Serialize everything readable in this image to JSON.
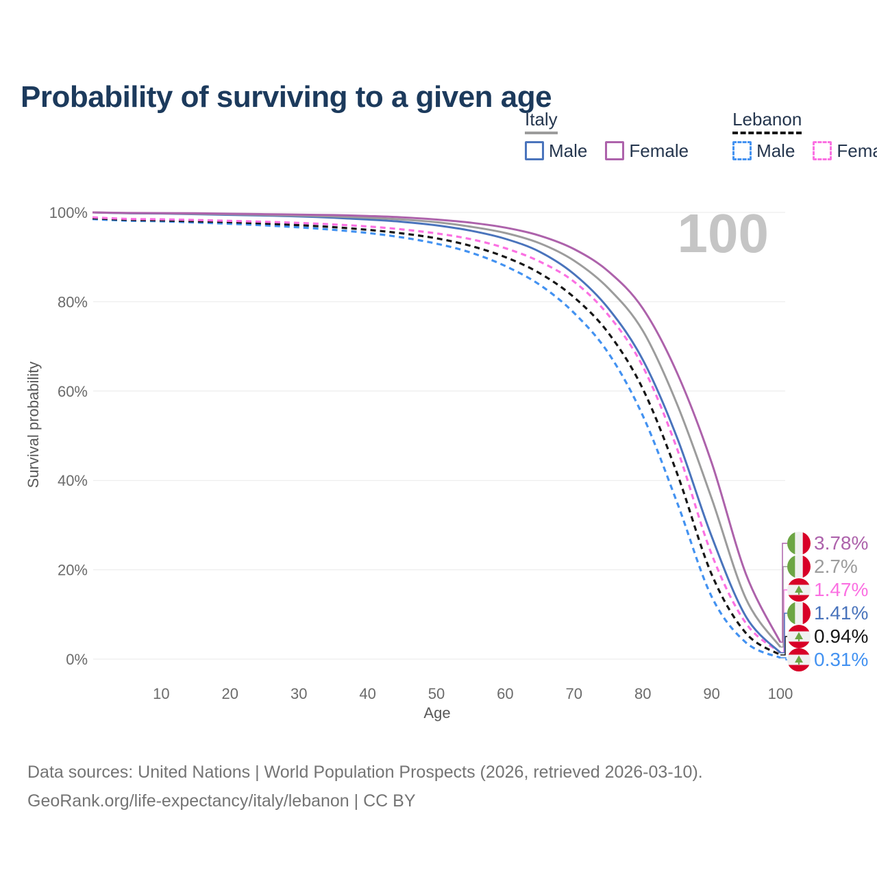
{
  "title": "Probability of surviving to a given age",
  "watermark": "100",
  "legend": {
    "groups": [
      {
        "label": "Italy",
        "underline_color": "#9c9c9c",
        "underline_dashed": false,
        "items": [
          {
            "label": "Male",
            "color": "#4a74bc",
            "dashed": false
          },
          {
            "label": "Female",
            "color": "#ad62ab",
            "dashed": false
          }
        ]
      },
      {
        "label": "Lebanon",
        "underline_color": "#161616",
        "underline_dashed": true,
        "items": [
          {
            "label": "Male",
            "color": "#4392f1",
            "dashed": true
          },
          {
            "label": "Female",
            "color": "#fb70e2",
            "dashed": true
          }
        ]
      }
    ]
  },
  "axes": {
    "y_label": "Survival probability",
    "x_label": "Age",
    "y_ticks": [
      "0%",
      "20%",
      "40%",
      "60%",
      "80%",
      "100%"
    ],
    "x_ticks": [
      10,
      20,
      30,
      40,
      50,
      60,
      70,
      80,
      90,
      100
    ]
  },
  "footer": {
    "line1": "Data sources: United Nations | World Population Prospects (2026, retrieved 2026-03-10).",
    "line2": "GeoRank.org/life-expectancy/italy/lebanon | CC BY"
  },
  "chart_data": {
    "type": "line",
    "title": "Probability of surviving to a given age",
    "xlabel": "Age",
    "ylabel": "Survival probability",
    "xlim": [
      0,
      100
    ],
    "ylim": [
      0,
      100
    ],
    "grid": "horizontal",
    "legend_position": "top-right",
    "x": [
      0,
      5,
      10,
      15,
      20,
      25,
      30,
      35,
      40,
      45,
      50,
      55,
      60,
      65,
      70,
      75,
      80,
      85,
      90,
      95,
      100
    ],
    "series": [
      {
        "id": "lebanon-male",
        "name": "Lebanon Male",
        "country": "Lebanon",
        "sex": "Male",
        "color": "#4392f1",
        "dashed": true,
        "flag": "lebanon",
        "end_label": "0.31%",
        "label_row": 5,
        "values": [
          98.5,
          98.15,
          98.0,
          97.75,
          97.45,
          97.1,
          96.65,
          96.1,
          95.4,
          94.4,
          93.0,
          91.0,
          88.0,
          83.8,
          77.5,
          68.5,
          54.5,
          35.0,
          14.0,
          3.7,
          0.31
        ]
      },
      {
        "id": "lebanon-both",
        "name": "Lebanon Both sexes",
        "country": "Lebanon",
        "sex": "Both",
        "color": "#161616",
        "dashed": true,
        "flag": "lebanon",
        "end_label": "0.94%",
        "label_row": 4,
        "values": [
          98.7,
          98.35,
          98.2,
          98.0,
          97.8,
          97.5,
          97.15,
          96.7,
          96.1,
          95.3,
          94.2,
          92.5,
          90.0,
          86.4,
          81.0,
          73.0,
          60.5,
          41.5,
          19.0,
          5.8,
          0.94
        ]
      },
      {
        "id": "lebanon-female",
        "name": "Lebanon Female",
        "country": "Lebanon",
        "sex": "Female",
        "color": "#fb70e2",
        "dashed": true,
        "flag": "lebanon",
        "end_label": "1.47%",
        "label_row": 2,
        "values": [
          98.9,
          98.55,
          98.45,
          98.3,
          98.1,
          97.9,
          97.65,
          97.3,
          96.85,
          96.2,
          95.3,
          94.0,
          92.0,
          89.0,
          84.5,
          77.0,
          65.5,
          47.0,
          23.5,
          8.0,
          1.47
        ]
      },
      {
        "id": "italy-male",
        "name": "Italy Male",
        "country": "Italy",
        "sex": "Male",
        "color": "#4a74bc",
        "dashed": false,
        "flag": "italy",
        "end_label": "1.41%",
        "label_row": 3,
        "values": [
          100,
          99.8,
          99.75,
          99.6,
          99.45,
          99.3,
          99.1,
          98.8,
          98.4,
          97.9,
          97.1,
          95.9,
          94.1,
          91.2,
          86.2,
          78.5,
          67.0,
          49.5,
          27.5,
          9.5,
          1.41
        ]
      },
      {
        "id": "italy-both",
        "name": "Italy Both sexes",
        "country": "Italy",
        "sex": "Both",
        "color": "#9c9c9c",
        "dashed": false,
        "flag": "italy",
        "end_label": "2.7%",
        "label_row": 1,
        "values": [
          100,
          99.85,
          99.8,
          99.7,
          99.6,
          99.45,
          99.3,
          99.1,
          98.8,
          98.4,
          97.8,
          96.8,
          95.4,
          93.1,
          89.2,
          83.0,
          73.5,
          57.0,
          36.0,
          13.5,
          2.7
        ]
      },
      {
        "id": "italy-female",
        "name": "Italy Female",
        "country": "Italy",
        "sex": "Female",
        "color": "#ad62ab",
        "dashed": false,
        "flag": "italy",
        "end_label": "3.78%",
        "label_row": 0,
        "values": [
          100,
          99.9,
          99.85,
          99.8,
          99.7,
          99.6,
          99.5,
          99.4,
          99.2,
          98.9,
          98.4,
          97.7,
          96.6,
          94.8,
          91.8,
          86.8,
          78.5,
          64.0,
          44.0,
          19.0,
          3.78
        ]
      }
    ],
    "flag_colors": {
      "italy": {
        "green": "#6da544",
        "white": "#f0f0f0",
        "red": "#d80027"
      },
      "lebanon": {
        "red": "#d80027",
        "white": "#f0f0f0",
        "cedar_green": "#6da544"
      }
    }
  }
}
